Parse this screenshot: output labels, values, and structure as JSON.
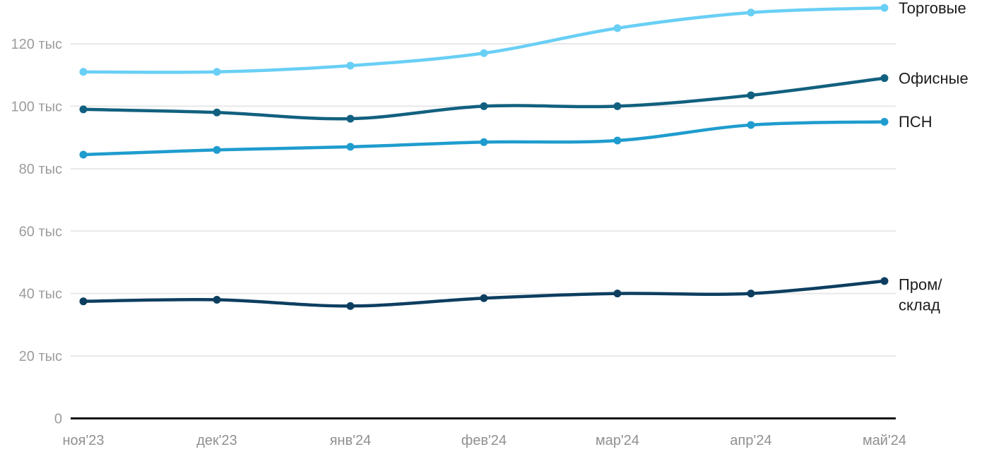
{
  "chart_data": {
    "type": "line",
    "title": "",
    "xlabel": "",
    "ylabel": "",
    "units": "тыс",
    "grid": "horizontal",
    "legend_position": "right-end-of-line",
    "x_labels": [
      "ноя'23",
      "дек'23",
      "янв'24",
      "фев'24",
      "мар'24",
      "апр'24",
      "май'24"
    ],
    "ylim": [
      0,
      132
    ],
    "y_ticks": [
      {
        "value": 0,
        "label": "0"
      },
      {
        "value": 20,
        "label": "20 тыс"
      },
      {
        "value": 40,
        "label": "40 тыс"
      },
      {
        "value": 60,
        "label": "60 тыс"
      },
      {
        "value": 80,
        "label": "80 тыс"
      },
      {
        "value": 100,
        "label": "100 тыс"
      },
      {
        "value": 120,
        "label": "120 тыс"
      }
    ],
    "series": [
      {
        "name": "Торговые",
        "key": "torgovye",
        "label_lines": [
          "Торговые"
        ],
        "color": "#69cff5",
        "values": [
          111,
          111,
          113,
          117,
          125,
          130,
          131.5
        ]
      },
      {
        "name": "Офисные",
        "key": "ofisnye",
        "label_lines": [
          "Офисные"
        ],
        "color": "#12607f",
        "values": [
          99,
          98,
          96,
          100,
          100,
          103.5,
          109
        ]
      },
      {
        "name": "ПСН",
        "key": "psn",
        "label_lines": [
          "ПСН"
        ],
        "color": "#1f9cce",
        "values": [
          84.5,
          86,
          87,
          88.5,
          89,
          94,
          95
        ]
      },
      {
        "name": "Пром/склад",
        "key": "prom-sklad",
        "label_lines": [
          "Пром/",
          "склад"
        ],
        "color": "#0d3e60",
        "values": [
          37.5,
          38,
          36,
          38.5,
          40,
          40,
          44
        ]
      }
    ],
    "colors": {
      "grid": "#e8e8e8",
      "axis_line": "#161616",
      "tick_text": "#9c9c9c",
      "series_label_text": "#1c1c1c",
      "background": "#ffffff"
    }
  }
}
